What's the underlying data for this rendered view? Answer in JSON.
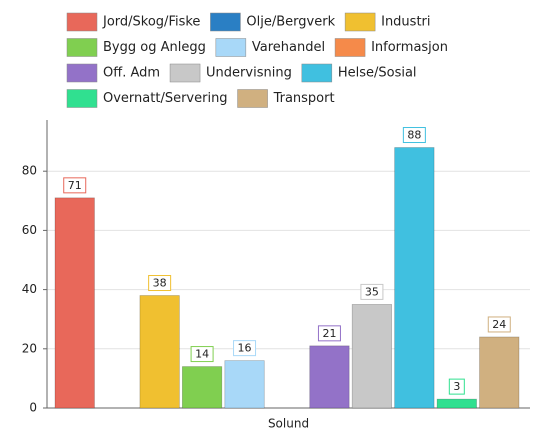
{
  "chart_data": {
    "type": "bar",
    "categories": [
      "Solund"
    ],
    "series": [
      {
        "name": "Jord/Skog/Fiske",
        "color": "#e8685a",
        "values": [
          71
        ]
      },
      {
        "name": "Olje/Bergverk",
        "color": "#2a7fc4",
        "values": [
          null
        ]
      },
      {
        "name": "Industri",
        "color": "#f0c030",
        "values": [
          38
        ]
      },
      {
        "name": "Bygg og Anlegg",
        "color": "#80cf50",
        "values": [
          14
        ]
      },
      {
        "name": "Varehandel",
        "color": "#a8d8f8",
        "values": [
          16
        ]
      },
      {
        "name": "Informasjon",
        "color": "#f58a4a",
        "values": [
          null
        ]
      },
      {
        "name": "Off. Adm",
        "color": "#9372c8",
        "values": [
          21
        ]
      },
      {
        "name": "Undervisning",
        "color": "#c8c8c8",
        "values": [
          35
        ]
      },
      {
        "name": "Helse/Sosial",
        "color": "#40c0e0",
        "values": [
          88
        ]
      },
      {
        "name": "Overnatt/Servering",
        "color": "#30e090",
        "values": [
          3
        ]
      },
      {
        "name": "Transport",
        "color": "#d0b080",
        "values": [
          24
        ]
      }
    ],
    "ylim": [
      0,
      100
    ],
    "yticks": [
      0,
      20,
      40,
      60,
      80
    ],
    "grid": true
  }
}
